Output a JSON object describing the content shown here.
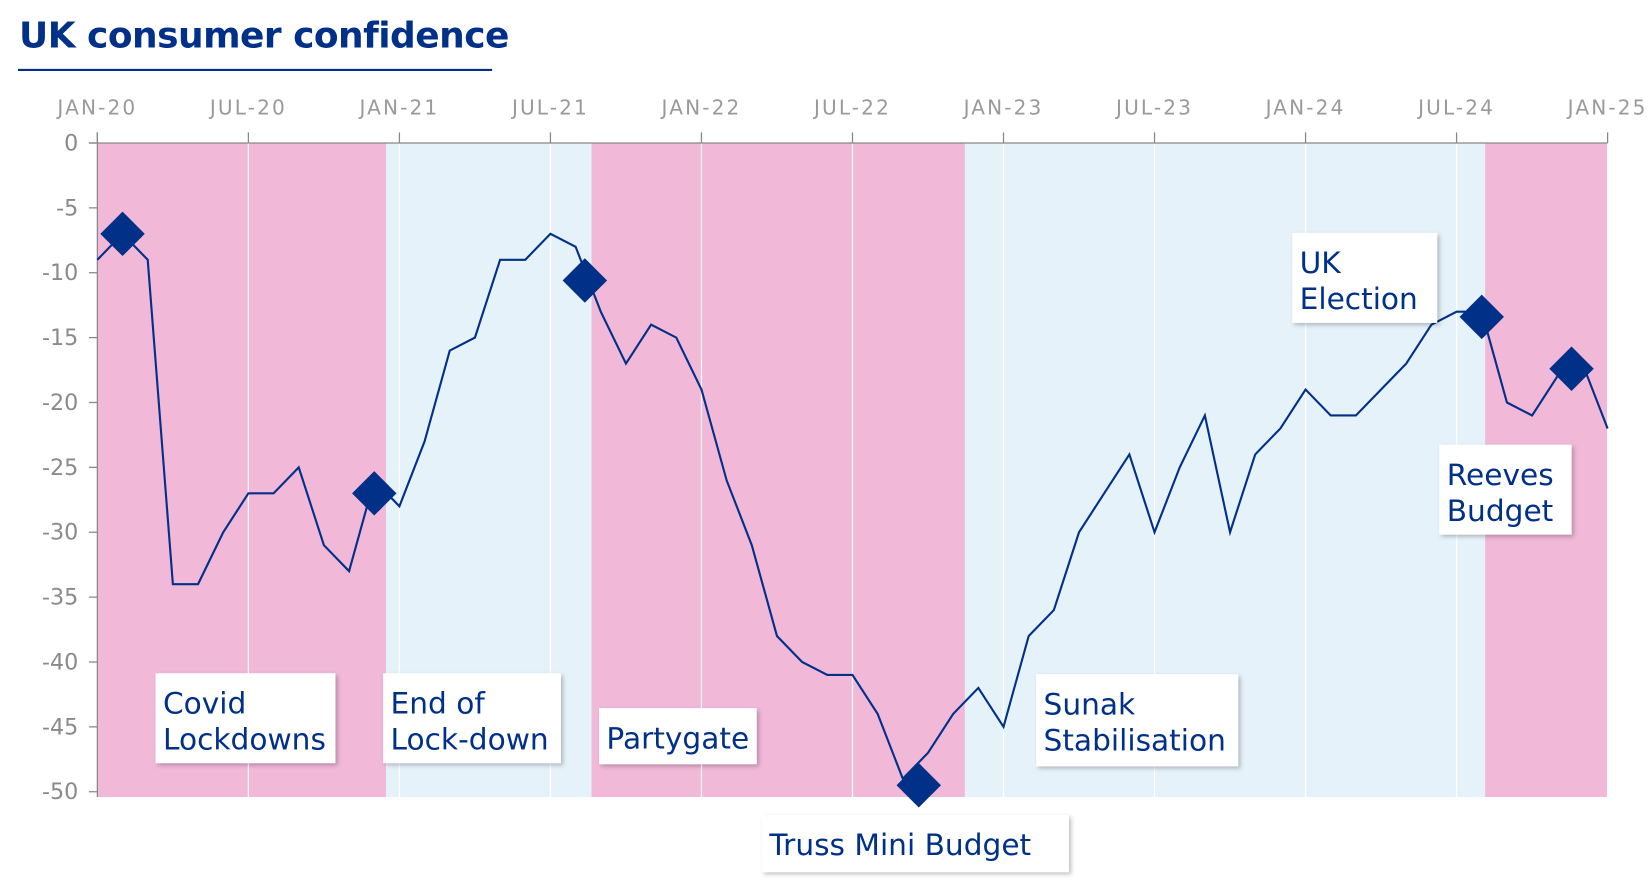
{
  "chart_data": {
    "type": "line",
    "title": "UK consumer confidence",
    "xlabel": "",
    "ylabel": "",
    "x_tick_labels": [
      "JAN-20",
      "JUL-20",
      "JAN-21",
      "JUL-21",
      "JAN-22",
      "JUL-22",
      "JAN-23",
      "JUL-23",
      "JAN-24",
      "JUL-24",
      "JAN-25"
    ],
    "y_tick_labels": [
      "0",
      "-5",
      "-10",
      "-15",
      "-20",
      "-25",
      "-30",
      "-35",
      "-40",
      "-45",
      "-50"
    ],
    "ylim": [
      -50,
      0
    ],
    "xlim": [
      "2020-01",
      "2025-01"
    ],
    "grid": "vertical",
    "legend": "none",
    "x": [
      "2020-01",
      "2020-02",
      "2020-03",
      "2020-04",
      "2020-05",
      "2020-06",
      "2020-07",
      "2020-08",
      "2020-09",
      "2020-10",
      "2020-11",
      "2020-12",
      "2021-01",
      "2021-02",
      "2021-03",
      "2021-04",
      "2021-05",
      "2021-06",
      "2021-07",
      "2021-08",
      "2021-09",
      "2021-10",
      "2021-11",
      "2021-12",
      "2022-01",
      "2022-02",
      "2022-03",
      "2022-04",
      "2022-05",
      "2022-06",
      "2022-07",
      "2022-08",
      "2022-09",
      "2022-10",
      "2022-11",
      "2022-12",
      "2023-01",
      "2023-02",
      "2023-03",
      "2023-04",
      "2023-05",
      "2023-06",
      "2023-07",
      "2023-08",
      "2023-09",
      "2023-10",
      "2023-11",
      "2023-12",
      "2024-01",
      "2024-02",
      "2024-03",
      "2024-04",
      "2024-05",
      "2024-06",
      "2024-07",
      "2024-08",
      "2024-09",
      "2024-10",
      "2024-11",
      "2024-12",
      "2025-01"
    ],
    "series": [
      {
        "color": "#003087",
        "values": [
          -9,
          -7,
          -9,
          -34,
          -34,
          -30,
          -27,
          -27,
          -25,
          -31,
          -33,
          -26,
          -28,
          -23,
          -16,
          -15,
          -9,
          -9,
          -7,
          -8,
          -13,
          -17,
          -14,
          -15,
          -19,
          -26,
          -31,
          -38,
          -40,
          -41,
          -41,
          -44,
          -49,
          -47,
          -44,
          -42,
          -45,
          -38,
          -36,
          -30,
          -27,
          -24,
          -30,
          -25,
          -21,
          -30,
          -24,
          -22,
          -19,
          -21,
          -21,
          -19,
          -17,
          -14,
          -13,
          -13,
          -20,
          -21,
          -18,
          -17,
          -22
        ]
      }
    ],
    "periods": [
      {
        "start": "2020-01",
        "end": "2020-12-15",
        "color": "#F1B8D8"
      },
      {
        "start": "2020-12-15",
        "end": "2021-08-20",
        "color": "#E6F2FA"
      },
      {
        "start": "2021-08-20",
        "end": "2022-11-15",
        "color": "#F1B8D8"
      },
      {
        "start": "2022-11-15",
        "end": "2024-08-05",
        "color": "#E6F2FA"
      },
      {
        "start": "2024-08-05",
        "end": "2025-01",
        "color": "#F1B8D8"
      }
    ],
    "event_markers": [
      {
        "date": "2020-02",
        "value": -7
      },
      {
        "date": "2020-12",
        "value": -27
      },
      {
        "date": "2021-08-12",
        "value": -10.6
      },
      {
        "date": "2022-09-20",
        "value": -49.5
      },
      {
        "date": "2024-08",
        "value": -13.4
      },
      {
        "date": "2024-11-18",
        "value": -17.4
      }
    ],
    "annotations": [
      {
        "lines": [
          "Covid",
          "Lockdowns"
        ]
      },
      {
        "lines": [
          "End of",
          "Lock-down"
        ]
      },
      {
        "lines": [
          "Partygate"
        ]
      },
      {
        "lines": [
          "Truss Mini Budget"
        ]
      },
      {
        "lines": [
          "Sunak",
          "Stabilisation"
        ]
      },
      {
        "lines": [
          "UK",
          "Election"
        ]
      },
      {
        "lines": [
          "Reeves",
          "Budget"
        ]
      }
    ],
    "marker_color": "#003087"
  }
}
